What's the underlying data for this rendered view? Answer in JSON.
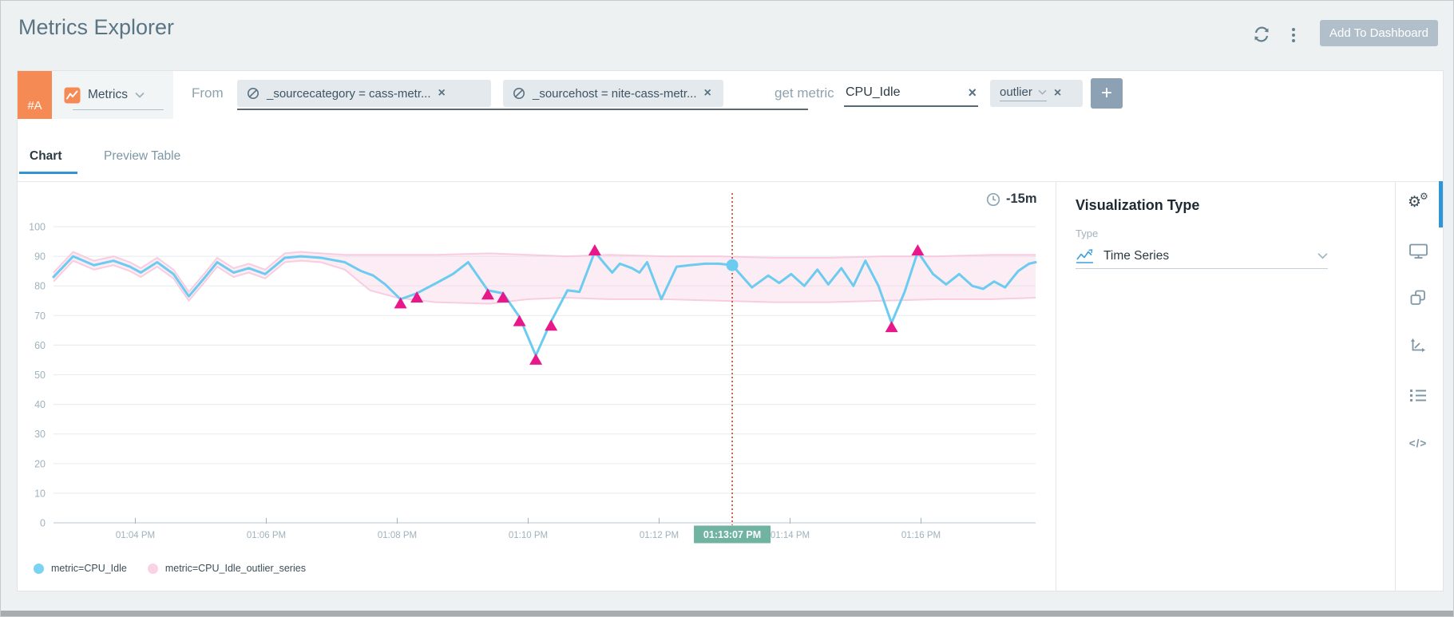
{
  "header": {
    "title": "Metrics Explorer",
    "add_to_dashboard_label": "Add To Dashboard"
  },
  "query_row": {
    "row_id": "#A",
    "source_type_label": "Metrics",
    "from_label": "From",
    "filters": [
      {
        "text": "_sourcecategory = cass-metr..."
      },
      {
        "text": "_sourcehost = nite-cass-metr..."
      }
    ],
    "get_metric_label": "get metric",
    "metric_value": "CPU_Idle",
    "operator_label": "outlier",
    "add_operator_label": "+"
  },
  "tabs": [
    {
      "label": "Chart"
    },
    {
      "label": "Preview Table"
    }
  ],
  "chart_panel": {
    "time_range": "-15m",
    "legend": [
      {
        "label": "metric=CPU_Idle",
        "color": "#7bd3f3"
      },
      {
        "label": "metric=CPU_Idle_outlier_series",
        "color": "#f9d2e3"
      }
    ]
  },
  "right_panel": {
    "title": "Visualization Type",
    "type_label": "Type",
    "type_value": "Time Series"
  },
  "icons": {
    "remove": "×",
    "gear": "⚙",
    "code": "</>"
  },
  "chart_data": {
    "type": "line",
    "x_window_seconds": 900,
    "ylim": [
      0,
      100
    ],
    "yticks": [
      0,
      10,
      20,
      30,
      40,
      50,
      60,
      70,
      80,
      90,
      100
    ],
    "xticks": [
      {
        "label": "01:04 PM",
        "t": 75
      },
      {
        "label": "01:06 PM",
        "t": 195
      },
      {
        "label": "01:08 PM",
        "t": 315
      },
      {
        "label": "01:10 PM",
        "t": 435
      },
      {
        "label": "01:12 PM",
        "t": 555
      },
      {
        "label": "01:14 PM",
        "t": 675
      },
      {
        "label": "01:16 PM",
        "t": 795
      }
    ],
    "cursor": {
      "t": 622,
      "v": 87,
      "label": "01:13:07 PM",
      "line_color": "#bf4226",
      "badge_color": "#6fb3a0"
    },
    "series": [
      {
        "name": "metric=CPU_Idle",
        "color": "#6ccbf0",
        "points": [
          [
            0,
            83
          ],
          [
            18,
            90
          ],
          [
            37,
            87
          ],
          [
            55,
            88.5
          ],
          [
            70,
            86.5
          ],
          [
            80,
            84.5
          ],
          [
            95,
            88
          ],
          [
            110,
            84
          ],
          [
            124,
            76.5
          ],
          [
            139,
            83
          ],
          [
            150,
            88
          ],
          [
            165,
            84.5
          ],
          [
            179,
            86
          ],
          [
            194,
            84
          ],
          [
            212,
            89.5
          ],
          [
            227,
            90
          ],
          [
            245,
            89.5
          ],
          [
            267,
            88
          ],
          [
            282,
            85
          ],
          [
            293,
            83.5
          ],
          [
            304,
            80.5
          ],
          [
            318,
            75.5
          ],
          [
            333,
            77.5
          ],
          [
            351,
            81
          ],
          [
            366,
            84
          ],
          [
            380,
            88
          ],
          [
            398,
            78.5
          ],
          [
            412,
            77.5
          ],
          [
            427,
            69.5
          ],
          [
            442,
            56.5
          ],
          [
            456,
            68
          ],
          [
            471,
            78.5
          ],
          [
            482,
            78
          ],
          [
            496,
            91.5
          ],
          [
            505,
            87.5
          ],
          [
            512,
            84.5
          ],
          [
            519,
            87.5
          ],
          [
            530,
            86
          ],
          [
            537,
            84.5
          ],
          [
            544,
            88
          ],
          [
            557,
            75.5
          ],
          [
            571,
            86.5
          ],
          [
            583,
            87
          ],
          [
            597,
            87.5
          ],
          [
            610,
            87.5
          ],
          [
            622,
            87
          ],
          [
            640,
            79.5
          ],
          [
            655,
            83.5
          ],
          [
            665,
            81
          ],
          [
            676,
            84
          ],
          [
            688,
            80
          ],
          [
            700,
            85.5
          ],
          [
            710,
            80.5
          ],
          [
            722,
            86
          ],
          [
            733,
            80
          ],
          [
            744,
            88.5
          ],
          [
            756,
            80
          ],
          [
            768,
            67.5
          ],
          [
            780,
            78
          ],
          [
            792,
            91.5
          ],
          [
            806,
            84
          ],
          [
            818,
            80.5
          ],
          [
            830,
            84
          ],
          [
            842,
            80
          ],
          [
            852,
            79
          ],
          [
            862,
            81.5
          ],
          [
            872,
            79.5
          ],
          [
            884,
            85
          ],
          [
            894,
            87.5
          ],
          [
            900,
            88
          ]
        ]
      }
    ],
    "band": {
      "name": "metric=CPU_Idle_outlier_series",
      "fill": "#f7cfe3",
      "edge": "#f7c6dc",
      "points": [
        [
          0,
          81.5,
          84.5
        ],
        [
          18,
          88.5,
          91.5
        ],
        [
          37,
          85.5,
          88.5
        ],
        [
          55,
          87,
          90
        ],
        [
          70,
          85,
          88
        ],
        [
          80,
          83,
          86
        ],
        [
          95,
          86.5,
          89.5
        ],
        [
          110,
          82.5,
          85.5
        ],
        [
          124,
          75,
          78
        ],
        [
          139,
          81.5,
          84.5
        ],
        [
          150,
          86.5,
          89.5
        ],
        [
          165,
          83,
          86
        ],
        [
          179,
          84.5,
          87.5
        ],
        [
          194,
          82.5,
          85.5
        ],
        [
          212,
          88,
          91
        ],
        [
          227,
          88.5,
          91.5
        ],
        [
          245,
          88,
          91
        ],
        [
          267,
          85.5,
          90.5
        ],
        [
          290,
          78.5,
          90.5
        ],
        [
          315,
          76,
          90.5
        ],
        [
          350,
          74.5,
          90.5
        ],
        [
          400,
          74,
          91
        ],
        [
          435,
          75.5,
          90.5
        ],
        [
          470,
          76,
          90
        ],
        [
          510,
          75.5,
          90.5
        ],
        [
          560,
          75.5,
          90
        ],
        [
          610,
          75,
          90
        ],
        [
          660,
          74.5,
          89.5
        ],
        [
          710,
          74.5,
          89.5
        ],
        [
          760,
          75,
          90
        ],
        [
          810,
          75.5,
          90
        ],
        [
          860,
          75.5,
          90.5
        ],
        [
          900,
          76,
          90.5
        ]
      ]
    },
    "outliers": {
      "color": "#e9188a",
      "low": [
        [
          318,
          75.5
        ],
        [
          333,
          77.5
        ],
        [
          398,
          78.5
        ],
        [
          412,
          77.5
        ],
        [
          427,
          69.5
        ],
        [
          442,
          56.5
        ],
        [
          456,
          68
        ],
        [
          768,
          67.5
        ]
      ],
      "high": [
        [
          496,
          91.5
        ],
        [
          792,
          91.5
        ]
      ]
    }
  }
}
